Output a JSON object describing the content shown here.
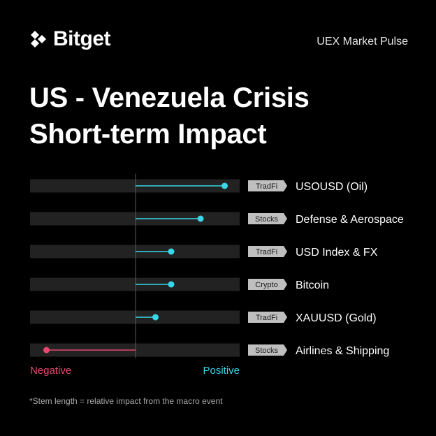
{
  "brand": {
    "name": "Bitget"
  },
  "header": {
    "subtitle": "UEX Market Pulse"
  },
  "title": {
    "line1": "US - Venezuela Crisis",
    "line2": "Short-term Impact"
  },
  "colors": {
    "positive": "#38d6e6",
    "negative": "#e8476e",
    "track": "#222222",
    "tag_bg": "#bfbfbf",
    "tag_text": "#1a1a1a"
  },
  "chart_data": {
    "type": "lollipop",
    "title": "US - Venezuela Crisis Short-term Impact",
    "xlim": [
      -1,
      1
    ],
    "axis_labels": {
      "negative": "Negative",
      "positive": "Positive"
    },
    "items": [
      {
        "category": "TradFi",
        "label": "USOUSD (Oil)",
        "value": 0.85
      },
      {
        "category": "Stocks",
        "label": "Defense & Aerospace",
        "value": 0.62
      },
      {
        "category": "TradFi",
        "label": "USD Index & FX",
        "value": 0.34
      },
      {
        "category": "Crypto",
        "label": "Bitcoin",
        "value": 0.34
      },
      {
        "category": "TradFi",
        "label": "XAUUSD (Gold)",
        "value": 0.19
      },
      {
        "category": "Stocks",
        "label": "Airlines & Shipping",
        "value": -0.85
      }
    ]
  },
  "footnote": "*Stem length = relative impact from the macro event"
}
